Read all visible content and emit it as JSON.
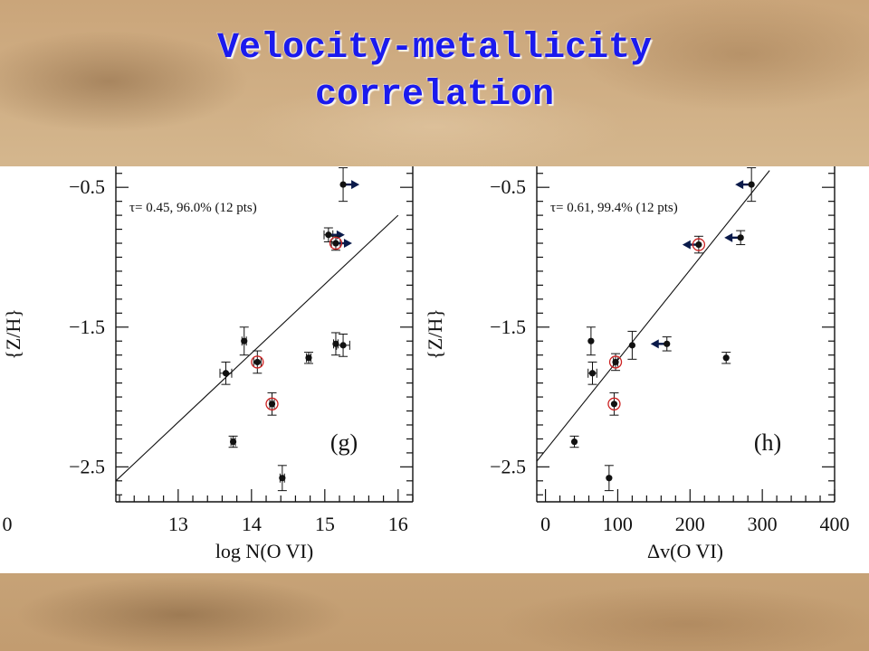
{
  "slide": {
    "title_line1": "Velocity-metallicity",
    "title_line2": "correlation",
    "title_color": "#1a1aee"
  },
  "chart_data": [
    {
      "type": "scatter",
      "panel_label": "(g)",
      "xlabel": "log N(O VI)",
      "ylabel": "{Z/H}",
      "annotation": "τ= 0.45,   96.0% (12 pts)",
      "xlim": [
        12.15,
        16.2
      ],
      "ylim": [
        -2.75,
        -0.35
      ],
      "xticks": [
        13,
        14,
        15,
        16
      ],
      "xtick_labels": [
        "13",
        "14",
        "15",
        "16"
      ],
      "extra_tick_labels": [
        {
          "label": "0",
          "x": 12.0
        }
      ],
      "yticks": [
        -0.5,
        -1.5,
        -2.5
      ],
      "ytick_labels": [
        "−0.5",
        "−1.5",
        "−2.5"
      ],
      "fit_line": {
        "x": [
          12.15,
          16.0
        ],
        "y": [
          -2.6,
          -0.7
        ]
      },
      "points": [
        {
          "x": 15.25,
          "y": -0.48,
          "xerr": 0,
          "yerr": 0.12,
          "red_circle": false,
          "arrow": "right"
        },
        {
          "x": 15.05,
          "y": -0.84,
          "xerr": 0.06,
          "yerr": 0.05,
          "red_circle": false,
          "arrow": "right"
        },
        {
          "x": 15.15,
          "y": -0.9,
          "xerr": 0.06,
          "yerr": 0.05,
          "red_circle": true,
          "arrow": "right"
        },
        {
          "x": 13.65,
          "y": -1.83,
          "xerr": 0.08,
          "yerr": 0.08,
          "red_circle": false,
          "arrow": null
        },
        {
          "x": 13.9,
          "y": -1.6,
          "xerr": 0.03,
          "yerr": 0.1,
          "red_circle": false,
          "arrow": null
        },
        {
          "x": 14.08,
          "y": -1.75,
          "xerr": 0.05,
          "yerr": 0.08,
          "red_circle": true,
          "arrow": null
        },
        {
          "x": 13.75,
          "y": -2.32,
          "xerr": 0.03,
          "yerr": 0.04,
          "red_circle": false,
          "arrow": null
        },
        {
          "x": 14.28,
          "y": -2.05,
          "xerr": 0.03,
          "yerr": 0.08,
          "red_circle": true,
          "arrow": null
        },
        {
          "x": 14.42,
          "y": -2.58,
          "xerr": 0.03,
          "yerr": 0.09,
          "red_circle": false,
          "arrow": null
        },
        {
          "x": 14.78,
          "y": -1.72,
          "xerr": 0.03,
          "yerr": 0.04,
          "red_circle": false,
          "arrow": null
        },
        {
          "x": 15.15,
          "y": -1.62,
          "xerr": 0.03,
          "yerr": 0.08,
          "red_circle": false,
          "arrow": null
        },
        {
          "x": 15.25,
          "y": -1.63,
          "xerr": 0.09,
          "yerr": 0.08,
          "red_circle": false,
          "arrow": null
        }
      ]
    },
    {
      "type": "scatter",
      "panel_label": "(h)",
      "xlabel": "Δv(O VI)",
      "ylabel": "{Z/H}",
      "annotation": "τ= 0.61,   99.4% (12 pts)",
      "xlim": [
        -12,
        400
      ],
      "ylim": [
        -2.75,
        -0.35
      ],
      "xticks": [
        0,
        100,
        200,
        300,
        400
      ],
      "xtick_labels": [
        "0",
        "100",
        "200",
        "300",
        "400"
      ],
      "yticks": [
        -0.5,
        -1.5,
        -2.5
      ],
      "ytick_labels": [
        "−0.5",
        "−1.5",
        "−2.5"
      ],
      "fit_line": {
        "x": [
          -12,
          310
        ],
        "y": [
          -2.46,
          -0.38
        ]
      },
      "points": [
        {
          "x": 285,
          "y": -0.48,
          "xerr": 0,
          "yerr": 0.12,
          "red_circle": false,
          "arrow": "left"
        },
        {
          "x": 270,
          "y": -0.86,
          "xerr": 0,
          "yerr": 0.05,
          "red_circle": false,
          "arrow": "left"
        },
        {
          "x": 212,
          "y": -0.91,
          "xerr": 0,
          "yerr": 0.06,
          "red_circle": true,
          "arrow": "left"
        },
        {
          "x": 40,
          "y": -2.32,
          "xerr": 0,
          "yerr": 0.04,
          "red_circle": false,
          "arrow": null
        },
        {
          "x": 63,
          "y": -1.6,
          "xerr": 0,
          "yerr": 0.1,
          "red_circle": false,
          "arrow": null
        },
        {
          "x": 65,
          "y": -1.83,
          "xerr": 6,
          "yerr": 0.08,
          "red_circle": false,
          "arrow": null
        },
        {
          "x": 88,
          "y": -2.58,
          "xerr": 0,
          "yerr": 0.09,
          "red_circle": false,
          "arrow": null
        },
        {
          "x": 95,
          "y": -2.05,
          "xerr": 0,
          "yerr": 0.08,
          "red_circle": true,
          "arrow": null
        },
        {
          "x": 97,
          "y": -1.75,
          "xerr": 3,
          "yerr": 0.06,
          "red_circle": true,
          "arrow": null
        },
        {
          "x": 120,
          "y": -1.63,
          "xerr": 0,
          "yerr": 0.1,
          "red_circle": false,
          "arrow": null
        },
        {
          "x": 168,
          "y": -1.62,
          "xerr": 0,
          "yerr": 0.05,
          "red_circle": false,
          "arrow": "left"
        },
        {
          "x": 250,
          "y": -1.72,
          "xerr": 0,
          "yerr": 0.04,
          "red_circle": false,
          "arrow": null
        }
      ]
    }
  ]
}
